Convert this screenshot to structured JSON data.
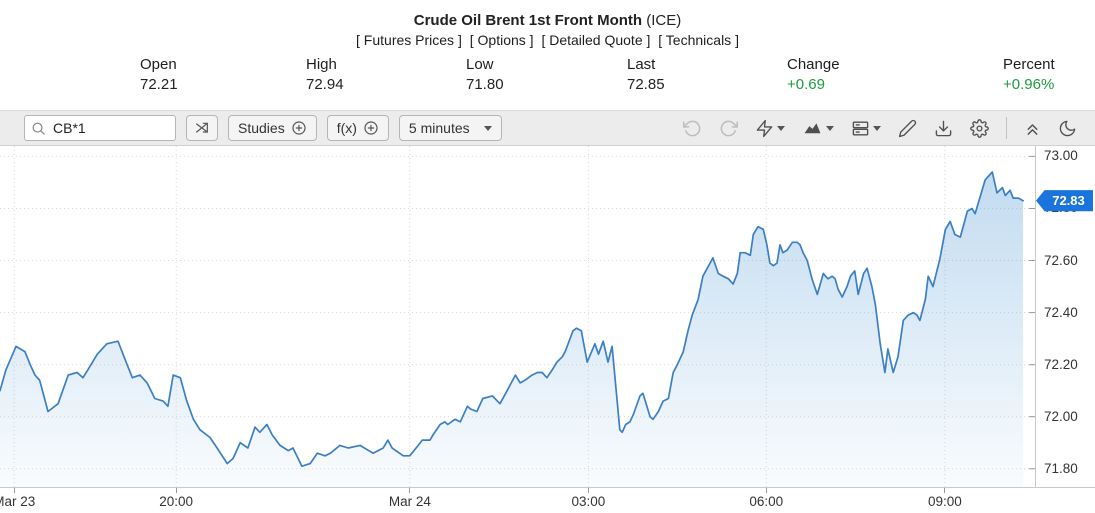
{
  "header": {
    "title": "Crude Oil Brent 1st Front Month",
    "exchange": "(ICE)",
    "links": [
      "[ Futures Prices ]",
      "[ Options ]",
      "[ Detailed Quote ]",
      "[ Technicals ]"
    ]
  },
  "quote": {
    "fields": [
      {
        "label": "Open",
        "value": "72.21"
      },
      {
        "label": "High",
        "value": "72.94"
      },
      {
        "label": "Low",
        "value": "71.80"
      },
      {
        "label": "Last",
        "value": "72.85"
      },
      {
        "label": "Change",
        "value": "+0.69"
      },
      {
        "label": "Percent",
        "value": "+0.96%"
      }
    ]
  },
  "toolbar": {
    "search": {
      "value": "CB*1"
    },
    "studies_label": "Studies",
    "fx_label": "f(x)",
    "interval_label": "5 minutes",
    "right_icons": [
      "undo",
      "redo",
      "alerts",
      "chart-style",
      "panels-layout",
      "draw",
      "download",
      "settings",
      "collapse",
      "dark-mode"
    ]
  },
  "colors": {
    "positive": "#1e9c3c",
    "line": "#3b7fc4",
    "fill": "#6eaadc",
    "badge": "#1a74dc",
    "grid": "#d8d8d8",
    "tick": "#9a9a9a"
  },
  "chart_data": {
    "type": "area",
    "symbol": "CB*1",
    "interval": "5 minutes",
    "title": "Crude Oil Brent 1st Front Month (ICE) intraday price",
    "x_unit": "hours since Mar 23 17:00",
    "x_range_hours": [
      0,
      17.45
    ],
    "x_ticks": [
      {
        "t": 0.24,
        "label": "Mar 23"
      },
      {
        "t": 2.97,
        "label": "20:00"
      },
      {
        "t": 6.91,
        "label": "Mar 24"
      },
      {
        "t": 9.92,
        "label": "03:00"
      },
      {
        "t": 12.92,
        "label": "06:00"
      },
      {
        "t": 15.93,
        "label": "09:00"
      }
    ],
    "y_ticks": [
      73.0,
      72.8,
      72.6,
      72.4,
      72.2,
      72.0,
      71.8
    ],
    "y_range": [
      71.73,
      73.04
    ],
    "last_price": 72.83,
    "last_label": "72.83",
    "points": [
      [
        0.0,
        72.1
      ],
      [
        0.1,
        72.18
      ],
      [
        0.27,
        72.27
      ],
      [
        0.42,
        72.25
      ],
      [
        0.51,
        72.2
      ],
      [
        0.59,
        72.16
      ],
      [
        0.67,
        72.14
      ],
      [
        0.81,
        72.02
      ],
      [
        0.98,
        72.05
      ],
      [
        1.15,
        72.16
      ],
      [
        1.3,
        72.17
      ],
      [
        1.4,
        72.15
      ],
      [
        1.48,
        72.18
      ],
      [
        1.64,
        72.24
      ],
      [
        1.8,
        72.28
      ],
      [
        1.99,
        72.29
      ],
      [
        2.11,
        72.22
      ],
      [
        2.23,
        72.15
      ],
      [
        2.36,
        72.16
      ],
      [
        2.48,
        72.13
      ],
      [
        2.61,
        72.07
      ],
      [
        2.75,
        72.06
      ],
      [
        2.83,
        72.04
      ],
      [
        2.92,
        72.16
      ],
      [
        3.04,
        72.15
      ],
      [
        3.15,
        72.06
      ],
      [
        3.26,
        71.99
      ],
      [
        3.37,
        71.95
      ],
      [
        3.54,
        71.92
      ],
      [
        3.66,
        71.88
      ],
      [
        3.83,
        71.82
      ],
      [
        3.93,
        71.84
      ],
      [
        4.05,
        71.9
      ],
      [
        4.18,
        71.88
      ],
      [
        4.3,
        71.96
      ],
      [
        4.38,
        71.94
      ],
      [
        4.5,
        71.97
      ],
      [
        4.59,
        71.93
      ],
      [
        4.72,
        71.89
      ],
      [
        4.86,
        71.87
      ],
      [
        4.94,
        71.88
      ],
      [
        5.09,
        71.81
      ],
      [
        5.23,
        71.82
      ],
      [
        5.35,
        71.86
      ],
      [
        5.48,
        71.85
      ],
      [
        5.57,
        71.86
      ],
      [
        5.73,
        71.89
      ],
      [
        5.87,
        71.88
      ],
      [
        6.07,
        71.89
      ],
      [
        6.29,
        71.86
      ],
      [
        6.46,
        71.88
      ],
      [
        6.54,
        71.91
      ],
      [
        6.61,
        71.88
      ],
      [
        6.8,
        71.85
      ],
      [
        6.91,
        71.85
      ],
      [
        7.05,
        71.89
      ],
      [
        7.12,
        71.91
      ],
      [
        7.25,
        71.91
      ],
      [
        7.3,
        71.93
      ],
      [
        7.42,
        71.97
      ],
      [
        7.5,
        71.98
      ],
      [
        7.55,
        71.97
      ],
      [
        7.67,
        71.99
      ],
      [
        7.76,
        71.98
      ],
      [
        7.88,
        72.04
      ],
      [
        7.93,
        72.03
      ],
      [
        8.04,
        72.02
      ],
      [
        8.14,
        72.07
      ],
      [
        8.3,
        72.08
      ],
      [
        8.43,
        72.05
      ],
      [
        8.55,
        72.1
      ],
      [
        8.69,
        72.16
      ],
      [
        8.77,
        72.13
      ],
      [
        8.85,
        72.14
      ],
      [
        8.97,
        72.16
      ],
      [
        9.06,
        72.17
      ],
      [
        9.14,
        72.17
      ],
      [
        9.22,
        72.15
      ],
      [
        9.31,
        72.18
      ],
      [
        9.39,
        72.21
      ],
      [
        9.48,
        72.23
      ],
      [
        9.53,
        72.25
      ],
      [
        9.66,
        72.33
      ],
      [
        9.72,
        72.34
      ],
      [
        9.8,
        72.33
      ],
      [
        9.9,
        72.21
      ],
      [
        10.03,
        72.28
      ],
      [
        10.09,
        72.24
      ],
      [
        10.17,
        72.29
      ],
      [
        10.25,
        72.21
      ],
      [
        10.32,
        72.27
      ],
      [
        10.45,
        71.95
      ],
      [
        10.49,
        71.94
      ],
      [
        10.55,
        71.97
      ],
      [
        10.62,
        71.98
      ],
      [
        10.68,
        72.01
      ],
      [
        10.79,
        72.08
      ],
      [
        10.84,
        72.09
      ],
      [
        10.96,
        72.0
      ],
      [
        11.01,
        71.99
      ],
      [
        11.1,
        72.02
      ],
      [
        11.18,
        72.06
      ],
      [
        11.27,
        72.07
      ],
      [
        11.35,
        72.17
      ],
      [
        11.42,
        72.2
      ],
      [
        11.52,
        72.25
      ],
      [
        11.6,
        72.33
      ],
      [
        11.67,
        72.39
      ],
      [
        11.77,
        72.45
      ],
      [
        11.85,
        72.54
      ],
      [
        12.02,
        72.61
      ],
      [
        12.11,
        72.55
      ],
      [
        12.19,
        72.54
      ],
      [
        12.28,
        72.53
      ],
      [
        12.36,
        72.51
      ],
      [
        12.43,
        72.55
      ],
      [
        12.48,
        72.63
      ],
      [
        12.56,
        72.63
      ],
      [
        12.65,
        72.62
      ],
      [
        12.7,
        72.7
      ],
      [
        12.78,
        72.73
      ],
      [
        12.87,
        72.72
      ],
      [
        12.93,
        72.66
      ],
      [
        12.98,
        72.59
      ],
      [
        13.04,
        72.58
      ],
      [
        13.1,
        72.59
      ],
      [
        13.15,
        72.66
      ],
      [
        13.2,
        72.63
      ],
      [
        13.27,
        72.64
      ],
      [
        13.36,
        72.67
      ],
      [
        13.44,
        72.67
      ],
      [
        13.49,
        72.66
      ],
      [
        13.54,
        72.63
      ],
      [
        13.61,
        72.6
      ],
      [
        13.69,
        72.53
      ],
      [
        13.78,
        72.47
      ],
      [
        13.83,
        72.51
      ],
      [
        13.88,
        72.55
      ],
      [
        13.96,
        72.53
      ],
      [
        14.03,
        72.54
      ],
      [
        14.08,
        72.53
      ],
      [
        14.13,
        72.49
      ],
      [
        14.2,
        72.46
      ],
      [
        14.28,
        72.5
      ],
      [
        14.34,
        72.54
      ],
      [
        14.41,
        72.56
      ],
      [
        14.47,
        72.47
      ],
      [
        14.56,
        72.55
      ],
      [
        14.62,
        72.57
      ],
      [
        14.7,
        72.5
      ],
      [
        14.76,
        72.43
      ],
      [
        14.84,
        72.28
      ],
      [
        14.92,
        72.17
      ],
      [
        14.97,
        72.26
      ],
      [
        15.06,
        72.17
      ],
      [
        15.14,
        72.23
      ],
      [
        15.23,
        72.37
      ],
      [
        15.31,
        72.39
      ],
      [
        15.4,
        72.4
      ],
      [
        15.46,
        72.39
      ],
      [
        15.51,
        72.37
      ],
      [
        15.6,
        72.45
      ],
      [
        15.65,
        72.54
      ],
      [
        15.73,
        72.5
      ],
      [
        15.85,
        72.61
      ],
      [
        15.94,
        72.72
      ],
      [
        16.02,
        72.75
      ],
      [
        16.1,
        72.7
      ],
      [
        16.19,
        72.69
      ],
      [
        16.31,
        72.79
      ],
      [
        16.39,
        72.8
      ],
      [
        16.44,
        72.78
      ],
      [
        16.61,
        72.91
      ],
      [
        16.73,
        72.94
      ],
      [
        16.81,
        72.86
      ],
      [
        16.9,
        72.88
      ],
      [
        16.95,
        72.85
      ],
      [
        17.03,
        72.87
      ],
      [
        17.08,
        72.84
      ],
      [
        17.17,
        72.84
      ],
      [
        17.25,
        72.83
      ]
    ]
  }
}
